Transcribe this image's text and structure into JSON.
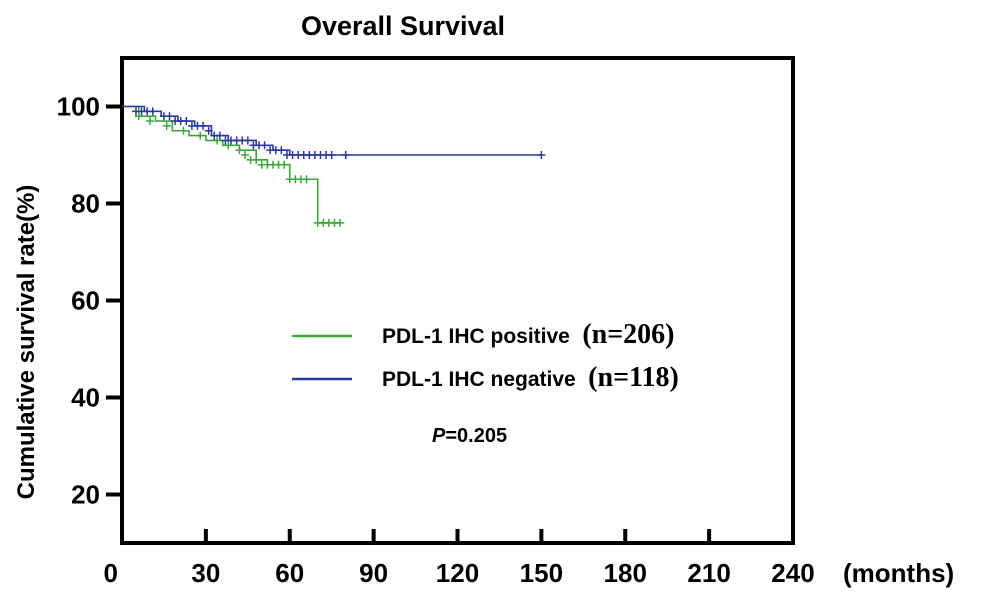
{
  "chart_data": {
    "type": "line",
    "title": "Overall Survival",
    "xlabel": "",
    "ylabel": "Cumulative survival rate(%)",
    "x_unit_label": "(months)",
    "xlim": [
      0,
      240
    ],
    "ylim": [
      10,
      110
    ],
    "x_ticks": [
      0,
      30,
      60,
      90,
      120,
      150,
      180,
      210,
      240
    ],
    "y_ticks": [
      20,
      40,
      60,
      80,
      100
    ],
    "series": [
      {
        "name": "PDL-1 IHC positive",
        "n_label": "(n=206)",
        "color": "#3aaa35",
        "x": [
          0,
          6,
          12,
          18,
          24,
          30,
          36,
          42,
          48,
          52,
          56,
          60,
          66,
          70,
          72,
          78
        ],
        "y": [
          100,
          98,
          97,
          95,
          94,
          93,
          92,
          91,
          89,
          88,
          88,
          85,
          85,
          76,
          76,
          76
        ],
        "censor_x": [
          6,
          10,
          16,
          22,
          28,
          34,
          38,
          42,
          44,
          46,
          48,
          50,
          52,
          54,
          56,
          58,
          60,
          62,
          64,
          66,
          70,
          72,
          74,
          76,
          78
        ],
        "censor_y": [
          98,
          97,
          96,
          95,
          94,
          93,
          92,
          91,
          90,
          89,
          89,
          88,
          88,
          88,
          88,
          88,
          85,
          85,
          85,
          85,
          76,
          76,
          76,
          76,
          76
        ]
      },
      {
        "name": "PDL-1 IHC negative",
        "n_label": "(n=118)",
        "color": "#2b3a9e",
        "x": [
          0,
          8,
          14,
          20,
          26,
          32,
          38,
          44,
          48,
          50,
          54,
          60,
          65,
          150
        ],
        "y": [
          100,
          99,
          98,
          97,
          96,
          94,
          93,
          93,
          92,
          92,
          91,
          90,
          90,
          90
        ],
        "censor_x": [
          5,
          7,
          9,
          11,
          15,
          17,
          19,
          21,
          23,
          25,
          27,
          29,
          31,
          33,
          35,
          37,
          39,
          41,
          43,
          45,
          47,
          49,
          51,
          53,
          55,
          57,
          59,
          61,
          63,
          65,
          67,
          69,
          71,
          73,
          75,
          80,
          150
        ],
        "censor_y": [
          99,
          99,
          99,
          99,
          98,
          98,
          97,
          97,
          97,
          96,
          96,
          96,
          95,
          94,
          94,
          93,
          93,
          93,
          93,
          93,
          92,
          92,
          92,
          91,
          91,
          91,
          90,
          90,
          90,
          90,
          90,
          90,
          90,
          90,
          90,
          90,
          90
        ]
      }
    ],
    "annotation": {
      "p_label": "P",
      "p_value": "=0.205"
    }
  }
}
